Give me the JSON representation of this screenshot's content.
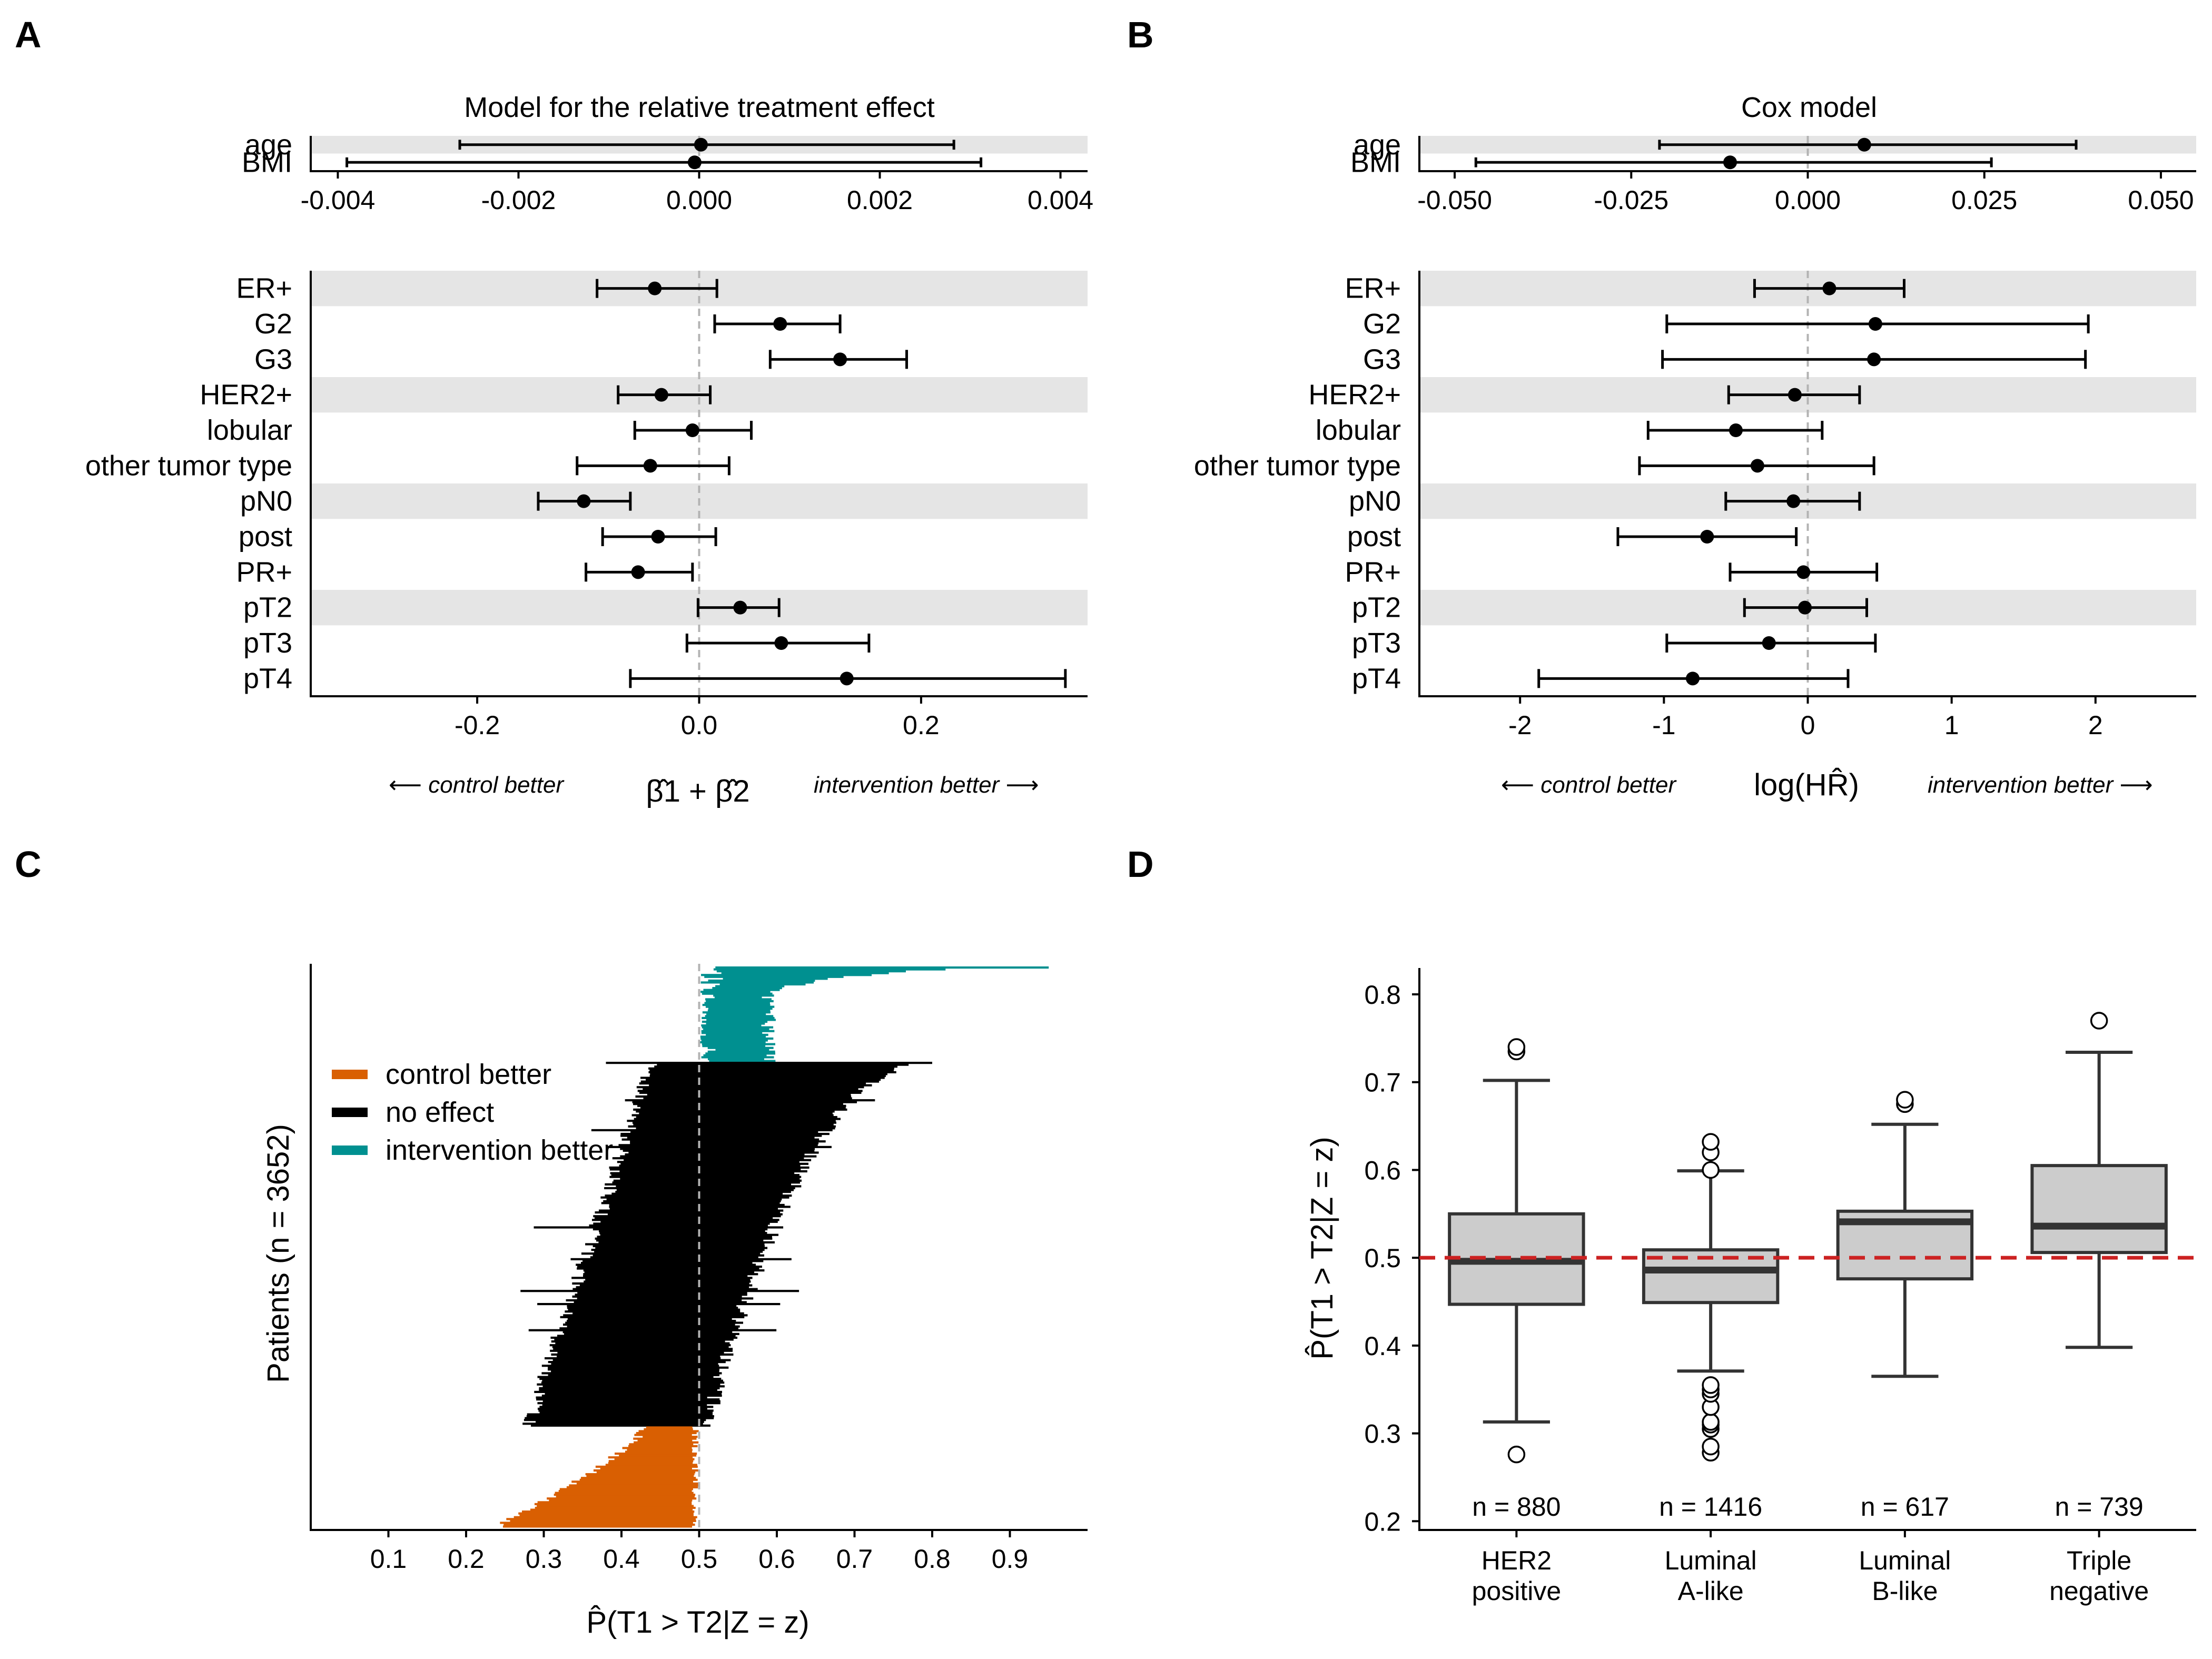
{
  "panels": {
    "A": {
      "letter": "A",
      "title": "Model for the relative treatment effect",
      "xlabel": "β̂1 + β̂2",
      "note_left": "⟵ control better",
      "note_right": "intervention better ⟶"
    },
    "B": {
      "letter": "B",
      "title": "Cox model",
      "xlabel": "log(HR̂)",
      "note_left": "⟵ control better",
      "note_right": "intervention better ⟶"
    },
    "C": {
      "letter": "C",
      "ylabel": "Patients (n = 3652)",
      "xlabel": "P̂(T1 > T2|Z = z)"
    },
    "D": {
      "letter": "D",
      "ylabel": "P̂(T1 > T2|Z = z)"
    }
  },
  "chart_data": [
    {
      "id": "A-top",
      "type": "scatter",
      "subtype": "forest",
      "title": "Model for the relative treatment effect",
      "categories": [
        "age",
        "BMI"
      ],
      "estimate": [
        2e-05,
        -5e-05
      ],
      "lower": [
        -0.00265,
        -0.0039
      ],
      "upper": [
        0.00282,
        0.00312
      ],
      "xlim": [
        -0.0043,
        0.0043
      ],
      "xticks": [
        -0.004,
        -0.002,
        0.0,
        0.002,
        0.004
      ],
      "xtick_labels": [
        "-0.004",
        "-0.002",
        "0.000",
        "0.002",
        "0.004"
      ],
      "reference_line": 0
    },
    {
      "id": "A-bottom",
      "type": "scatter",
      "subtype": "forest",
      "categories": [
        "ER+",
        "G2",
        "G3",
        "HER2+",
        "lobular",
        "other tumor type",
        "pN0",
        "post",
        "PR+",
        "pT2",
        "pT3",
        "pT4"
      ],
      "estimate": [
        -0.04,
        0.073,
        0.127,
        -0.034,
        -0.006,
        -0.044,
        -0.104,
        -0.037,
        -0.055,
        0.037,
        0.074,
        0.133
      ],
      "lower": [
        -0.092,
        0.014,
        0.064,
        -0.073,
        -0.058,
        -0.11,
        -0.145,
        -0.087,
        -0.102,
        -0.001,
        -0.011,
        -0.062
      ],
      "upper": [
        0.016,
        0.127,
        0.187,
        0.01,
        0.047,
        0.027,
        -0.062,
        0.015,
        -0.006,
        0.072,
        0.153,
        0.33
      ],
      "xlim": [
        -0.35,
        0.35
      ],
      "xticks": [
        -0.2,
        0.0,
        0.2
      ],
      "xtick_labels": [
        "-0.2",
        "0.0",
        "0.2"
      ],
      "xlabel": "β̂1 + β̂2",
      "reference_line": 0
    },
    {
      "id": "B-top",
      "type": "scatter",
      "subtype": "forest",
      "title": "Cox model",
      "categories": [
        "age",
        "BMI"
      ],
      "estimate": [
        0.008,
        -0.011
      ],
      "lower": [
        -0.021,
        -0.047
      ],
      "upper": [
        0.038,
        0.026
      ],
      "xlim": [
        -0.055,
        0.055
      ],
      "xticks": [
        -0.05,
        -0.025,
        0.0,
        0.025,
        0.05
      ],
      "xtick_labels": [
        "-0.050",
        "-0.025",
        "0.000",
        "0.025",
        "0.050"
      ],
      "reference_line": 0
    },
    {
      "id": "B-bottom",
      "type": "scatter",
      "subtype": "forest",
      "categories": [
        "ER+",
        "G2",
        "G3",
        "HER2+",
        "lobular",
        "other tumor type",
        "pN0",
        "post",
        "PR+",
        "pT2",
        "pT3",
        "pT4"
      ],
      "estimate": [
        0.15,
        0.47,
        0.46,
        -0.09,
        -0.5,
        -0.35,
        -0.1,
        -0.7,
        -0.03,
        -0.02,
        -0.27,
        -0.8
      ],
      "lower": [
        -0.37,
        -0.98,
        -1.01,
        -0.55,
        -1.11,
        -1.17,
        -0.57,
        -1.32,
        -0.54,
        -0.44,
        -0.98,
        -1.87
      ],
      "upper": [
        0.67,
        1.95,
        1.93,
        0.36,
        0.1,
        0.46,
        0.36,
        -0.08,
        0.48,
        0.41,
        0.47,
        0.28
      ],
      "xlim": [
        -2.7,
        2.7
      ],
      "xticks": [
        -2,
        -1,
        0,
        1,
        2
      ],
      "xtick_labels": [
        "-2",
        "-1",
        "0",
        "1",
        "2"
      ],
      "xlabel": "log(HR̂)",
      "reference_line": 0
    },
    {
      "id": "C",
      "type": "area",
      "subtype": "sorted individual estimates with intervals",
      "ylabel": "Patients (n = 3652)",
      "xlabel": "P̂(T1 > T2|Z = z)",
      "n": 3652,
      "xlim": [
        0,
        1
      ],
      "xticks": [
        0.1,
        0.2,
        0.3,
        0.4,
        0.5,
        0.6,
        0.7,
        0.8,
        0.9
      ],
      "xtick_labels": [
        "0.1",
        "0.2",
        "0.3",
        "0.4",
        "0.5",
        "0.6",
        "0.7",
        "0.8",
        "0.9"
      ],
      "reference_line": 0.5,
      "legend": {
        "position": "top-left",
        "entries": [
          {
            "label": "control better",
            "color": "#d95f02"
          },
          {
            "label": "no effect",
            "color": "#000000"
          },
          {
            "label": "intervention better",
            "color": "#009090"
          }
        ]
      },
      "groups": [
        {
          "name": "intervention better",
          "color": "#009090",
          "fraction": 0.17,
          "lower_min": 0.5,
          "upper_range": [
            0.55,
            0.95
          ]
        },
        {
          "name": "no effect",
          "color": "#000000",
          "fraction": 0.65,
          "lower_range": [
            0.27,
            0.49
          ],
          "upper_range": [
            0.5,
            0.8
          ]
        },
        {
          "name": "control better",
          "color": "#d95f02",
          "fraction": 0.18,
          "lower_range": [
            0.24,
            0.45
          ],
          "upper_max": 0.5
        }
      ]
    },
    {
      "id": "D",
      "type": "boxplot",
      "ylabel": "P̂(T1 > T2|Z = z)",
      "ylim": [
        0.19,
        0.83
      ],
      "yticks": [
        0.2,
        0.3,
        0.4,
        0.5,
        0.6,
        0.7,
        0.8
      ],
      "ytick_labels": [
        "0.2",
        "0.3",
        "0.4",
        "0.5",
        "0.6",
        "0.7",
        "0.8"
      ],
      "reference_line": 0.5,
      "categories": [
        "HER2\npositive",
        "Luminal\nA-like",
        "Luminal\nB-like",
        "Triple\nnegative"
      ],
      "counts": [
        "n = 880",
        "n = 1416",
        "n = 617",
        "n = 739"
      ],
      "boxes": [
        {
          "q1": 0.447,
          "median": 0.496,
          "q3": 0.55,
          "whisker_low": 0.313,
          "whisker_high": 0.702,
          "outliers": [
            0.276,
            0.735,
            0.74
          ]
        },
        {
          "q1": 0.449,
          "median": 0.486,
          "q3": 0.509,
          "whisker_low": 0.371,
          "whisker_high": 0.599,
          "outliers": [
            0.278,
            0.285,
            0.305,
            0.31,
            0.313,
            0.33,
            0.345,
            0.35,
            0.355,
            0.6,
            0.62,
            0.632
          ]
        },
        {
          "q1": 0.476,
          "median": 0.541,
          "q3": 0.553,
          "whisker_low": 0.365,
          "whisker_high": 0.652,
          "outliers": [
            0.675,
            0.68
          ]
        },
        {
          "q1": 0.506,
          "median": 0.536,
          "q3": 0.605,
          "whisker_low": 0.398,
          "whisker_high": 0.734,
          "outliers": [
            0.77
          ]
        }
      ]
    }
  ]
}
